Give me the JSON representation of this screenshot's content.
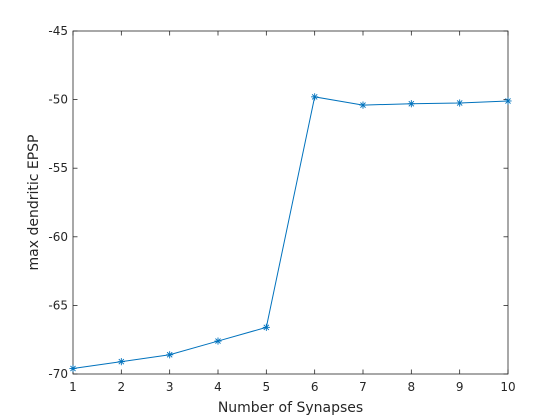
{
  "chart_data": {
    "type": "line",
    "title": "",
    "xlabel": "Number of Synapses",
    "ylabel": "max dendritic EPSP",
    "xlim": [
      1,
      10
    ],
    "ylim": [
      -70,
      -45
    ],
    "xticks": [
      1,
      2,
      3,
      4,
      5,
      6,
      7,
      8,
      9,
      10
    ],
    "yticks": [
      -70,
      -65,
      -60,
      -55,
      -50,
      -45
    ],
    "grid": false,
    "marker": "asterisk",
    "colors": {
      "line": "#0072BD",
      "axes": "#262626",
      "background": "#ffffff"
    },
    "series": [
      {
        "x": [
          1,
          2,
          3,
          4,
          5,
          6,
          7,
          8,
          9,
          10
        ],
        "y": [
          -69.6,
          -69.1,
          -68.6,
          -67.6,
          -66.6,
          -49.8,
          -50.4,
          -50.3,
          -50.25,
          -50.1
        ]
      }
    ]
  }
}
